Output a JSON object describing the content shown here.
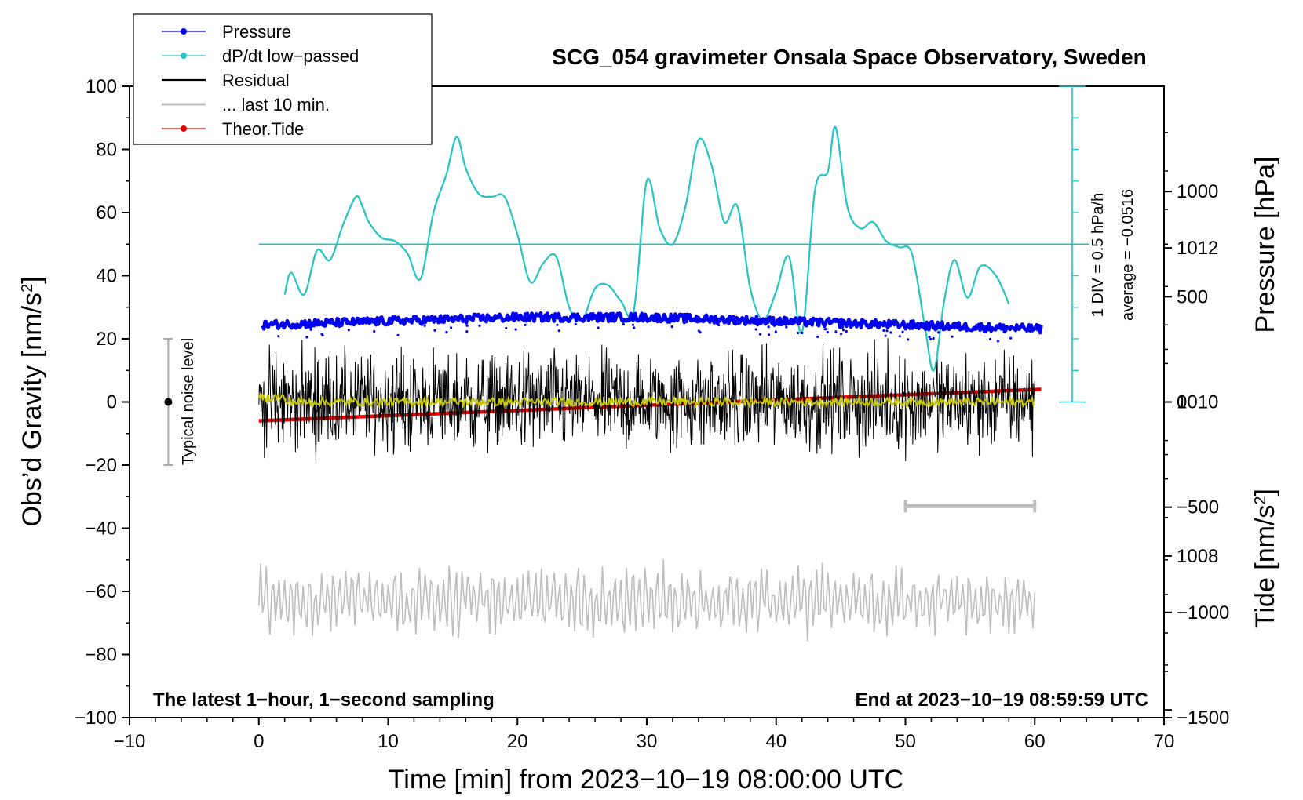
{
  "colors": {
    "pressure": "#0000ee",
    "dpdt": "#22c4c4",
    "residual": "#000000",
    "residual_smooth": "#c8c800",
    "last10": "#bdbdbd",
    "tide": "#ee0000",
    "axis": "#000000"
  },
  "chart_data": {
    "type": "line",
    "title": "SCG_054 gravimeter Onsala Space Observatory, Sweden",
    "xlabel": "Time [min] from 2023−10−19 08:00:00 UTC",
    "ylabel": "Obs’d Gravity [nm/s",
    "ylabel_sup": "2",
    "ylabel_close": "]",
    "xlim": [
      -10,
      70
    ],
    "ylim": [
      -100,
      100
    ],
    "x_ticks": [
      "−10",
      "0",
      "10",
      "20",
      "30",
      "40",
      "50",
      "60",
      "70"
    ],
    "y_ticks": [
      "−100",
      "−80",
      "−60",
      "−40",
      "−20",
      "0",
      "20",
      "40",
      "60",
      "80",
      "100"
    ],
    "right_pressure_axis": {
      "label": "Pressure [hPa]",
      "range": [
        1005.9,
        1014.1
      ],
      "ticks": [
        "1008",
        "1010",
        "1012"
      ]
    },
    "right_tide_axis": {
      "label": "Tide [nm/s",
      "label_sup": "2",
      "label_close": "]",
      "range": [
        -1500,
        1500
      ],
      "ticks": [
        "−1500",
        "−1000",
        "−500",
        "0",
        "500",
        "1000"
      ]
    },
    "legend": [
      {
        "label": "Pressure",
        "color": "#0000ee",
        "marker": true
      },
      {
        "label": "dP/dt low−passed",
        "color": "#22c4c4",
        "marker": true
      },
      {
        "label": "Residual",
        "color": "#000000",
        "marker": false
      },
      {
        "label": "... last 10 min.",
        "color": "#bdbdbd",
        "marker": false
      },
      {
        "label": "Theor.Tide",
        "color": "#ee0000",
        "marker": true
      }
    ],
    "legend_position": "top-left",
    "series": [
      {
        "name": "dP/dt low-passed",
        "axis": "gravity",
        "x": [
          2,
          2.5,
          3.5,
          4.5,
          5.5,
          6.5,
          7.5,
          8,
          8.5,
          9.5,
          10.5,
          11.5,
          12.5,
          13.5,
          14.5,
          15.3,
          16,
          17,
          18,
          19,
          20,
          21,
          22,
          23,
          24,
          25,
          26,
          27,
          28,
          29,
          30,
          31,
          32,
          33,
          34,
          35,
          36,
          37,
          38,
          39,
          40,
          41,
          42,
          43,
          44,
          44.6,
          45.5,
          46.5,
          47.5,
          48.5,
          49.5,
          50.5,
          51.5,
          52.2,
          53,
          53.8,
          54.8,
          55.8,
          57,
          58
        ],
        "values": [
          34,
          41,
          34,
          48,
          45,
          56,
          65,
          62,
          57,
          52,
          51,
          47,
          39,
          60,
          72,
          84,
          74,
          66,
          65,
          65,
          53,
          38,
          44,
          46,
          30,
          26,
          36,
          37,
          32,
          29,
          70,
          55,
          50,
          62,
          83,
          75,
          57,
          62,
          36,
          26,
          35,
          46,
          22,
          67,
          73,
          87,
          62,
          55,
          57,
          51,
          49,
          47,
          24,
          10,
          32,
          45,
          33,
          43,
          40,
          31
        ]
      },
      {
        "name": "Residual",
        "axis": "gravity",
        "x_range": [
          0,
          60
        ],
        "amplitude_range": [
          -22,
          22
        ]
      },
      {
        "name": "... last 10 min.",
        "axis": "gravity",
        "x_range": [
          0,
          60
        ],
        "center": -63,
        "amplitude_range": [
          -78,
          -42
        ]
      }
    ],
    "pressure_series": {
      "name": "Pressure",
      "x": [
        0,
        10,
        20,
        30,
        40,
        50,
        60
      ],
      "values": [
        1011.0,
        1011.05,
        1011.1,
        1011.1,
        1011.05,
        1011.0,
        1010.95
      ]
    },
    "tide_series": {
      "name": "Theor.Tide",
      "x": [
        0,
        60.5
      ],
      "values": [
        -90,
        60
      ]
    },
    "dpdt_scale_bar": {
      "label_div": "1 DIV = 0.5 hPa/h",
      "label_avg": "average = −0.0516",
      "zero_level": 50
    },
    "noise_bar": {
      "label": "Typical noise level",
      "x": -7,
      "range": [
        -20,
        20
      ]
    },
    "last10_bar": {
      "x_range": [
        50,
        60
      ],
      "y": -33
    },
    "annotations": {
      "bottom_left": "The latest 1−hour, 1−second sampling",
      "bottom_right": "End at 2023−10−19 08:59:59 UTC"
    }
  }
}
